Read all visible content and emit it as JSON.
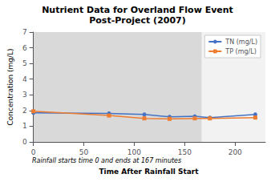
{
  "chart_data": {
    "type": "line",
    "title": "Nutrient Data for Overland Flow Event",
    "subtitle": "Post-Project (2007)",
    "xlabel": "Time After Rainfall Start",
    "ylabel": "Concentration (mg/L)",
    "annotations": [
      "Rainfall starts time 0 and ends at 167 minutes"
    ],
    "x": [
      0,
      75,
      110,
      135,
      160,
      175,
      220
    ],
    "series": [
      {
        "name": "TN (mg/L)",
        "color": "#4472C4",
        "marker": "circle",
        "values": [
          1.85,
          1.82,
          1.75,
          1.6,
          1.63,
          1.55,
          1.75
        ]
      },
      {
        "name": "TP (mg/L)",
        "color": "#ED7D31",
        "marker": "square",
        "values": [
          1.95,
          1.68,
          1.5,
          1.47,
          1.5,
          1.5,
          1.55
        ]
      }
    ],
    "spans": [
      {
        "from": 0,
        "to": 167,
        "color": "#d9d9d9"
      },
      {
        "from": 167,
        "to": 230,
        "color": "#f2f2f2"
      }
    ],
    "xlim": [
      0,
      230
    ],
    "ylim": [
      0,
      7
    ],
    "xticks": [
      0,
      50,
      100,
      150,
      200
    ],
    "yticks": [
      0,
      1,
      2,
      3,
      4,
      5,
      6,
      7
    ],
    "grid": true,
    "legend": "upper right"
  }
}
